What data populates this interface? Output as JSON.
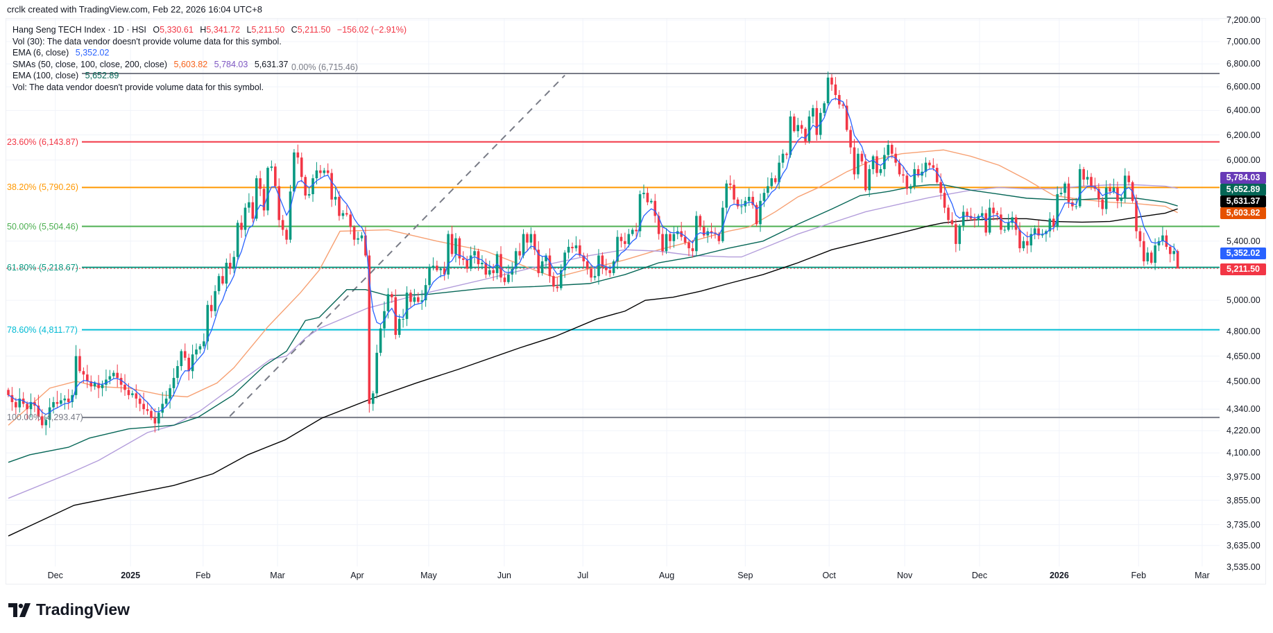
{
  "credit": "crclk created with TradingView.com, Feb 22, 2026 16:04 UTC+8",
  "legend": {
    "symbol": "Hang Seng TECH Index · 1D · HSI",
    "o_label": "O",
    "o": "5,330.61",
    "h_label": "H",
    "h": "5,341.72",
    "l_label": "L",
    "l": "5,211.50",
    "c_label": "C",
    "c": "5,211.50",
    "change": "−156.02 (−2.91%)",
    "vol30": "Vol (30): The data vendor doesn't provide volume data for this symbol.",
    "ema6_label": "EMA (6, close)",
    "ema6": "5,352.02",
    "smas_label": "SMAs (50, close, 100, close, 200, close)",
    "sma50": "5,603.82",
    "sma100": "5,784.03",
    "sma200": "5,631.37",
    "ema100_label": "EMA (100, close)",
    "ema100": "5,652.89",
    "vol": "Vol: The data vendor doesn't provide volume data for this symbol."
  },
  "price_tags": [
    {
      "label": "5,784.03",
      "value": 5784.03,
      "color": "#673ab7"
    },
    {
      "label": "5,652.89",
      "value": 5652.89,
      "color": "#056656"
    },
    {
      "label": "5,631.37",
      "value": 5631.37,
      "color": "#000000"
    },
    {
      "label": "5,603.82",
      "value": 5603.82,
      "color": "#e65100"
    },
    {
      "label": "5,352.02",
      "value": 5352.02,
      "color": "#2962ff"
    },
    {
      "label": "5,211.50",
      "value": 5211.5,
      "color": "#f23645"
    }
  ],
  "logo_text": "TradingView",
  "chart_data": {
    "type": "candlestick",
    "title": "Hang Seng TECH Index · 1D · HSI",
    "yscale": "log",
    "y_ticks": [
      "7,200.00",
      "7,000.00",
      "6,800.00",
      "6,600.00",
      "6,400.00",
      "6,200.00",
      "6,000.00",
      "5,400.00",
      "5,000.00",
      "4,800.00",
      "4,650.00",
      "4,500.00",
      "4,340.00",
      "4,220.00",
      "4,100.00",
      "3,975.00",
      "3,855.00",
      "3,735.00",
      "3,635.00",
      "3,535.00"
    ],
    "y_tick_values": [
      7200,
      7000,
      6800,
      6600,
      6400,
      6200,
      6000,
      5400,
      5000,
      4800,
      4650,
      4500,
      4340,
      4220,
      4100,
      3975,
      3855,
      3735,
      3635,
      3535
    ],
    "x_labels": [
      {
        "label": "Dec",
        "bar": 12.5
      },
      {
        "label": "2025",
        "bar": 32.5,
        "bold": true
      },
      {
        "label": "Feb",
        "bar": 51.8
      },
      {
        "label": "Mar",
        "bar": 71.6
      },
      {
        "label": "Apr",
        "bar": 92.8
      },
      {
        "label": "May",
        "bar": 111.8
      },
      {
        "label": "Jun",
        "bar": 131.9
      },
      {
        "label": "Jul",
        "bar": 152.8
      },
      {
        "label": "Aug",
        "bar": 175.1
      },
      {
        "label": "Sep",
        "bar": 196
      },
      {
        "label": "Oct",
        "bar": 218.3
      },
      {
        "label": "Nov",
        "bar": 238.4
      },
      {
        "label": "Dec",
        "bar": 258.3
      },
      {
        "label": "2026",
        "bar": 279.5,
        "bold": true
      },
      {
        "label": "Feb",
        "bar": 300.6
      },
      {
        "label": "Mar",
        "bar": 317.5
      }
    ],
    "closes": [
      4420,
      4380,
      4350,
      4400,
      4370,
      4340,
      4380,
      4360,
      4300,
      4250,
      4280,
      4350,
      4380,
      4370,
      4390,
      4400,
      4380,
      4420,
      4650,
      4560,
      4540,
      4500,
      4470,
      4490,
      4460,
      4480,
      4510,
      4530,
      4550,
      4520,
      4480,
      4450,
      4420,
      4430,
      4400,
      4370,
      4340,
      4330,
      4290,
      4260,
      4320,
      4370,
      4400,
      4460,
      4520,
      4590,
      4680,
      4640,
      4560,
      4660,
      4690,
      4710,
      4740,
      4970,
      4930,
      5060,
      5160,
      5110,
      5250,
      5210,
      5290,
      5530,
      5480,
      5640,
      5680,
      5560,
      5860,
      5780,
      5620,
      5940,
      5950,
      5800,
      5550,
      5480,
      5410,
      5760,
      6060,
      6020,
      5870,
      5730,
      5740,
      5860,
      5920,
      5900,
      5920,
      5900,
      5700,
      5720,
      5580,
      5600,
      5590,
      5500,
      5410,
      5420,
      5440,
      5300,
      4370,
      4430,
      4670,
      4820,
      4930,
      5040,
      5020,
      4780,
      4880,
      4880,
      5050,
      4990,
      5020,
      4990,
      5000,
      5100,
      5220,
      5230,
      5200,
      5210,
      5170,
      5450,
      5310,
      5420,
      5280,
      5270,
      5210,
      5300,
      5330,
      5240,
      5250,
      5170,
      5200,
      5180,
      5310,
      5150,
      5120,
      5170,
      5210,
      5330,
      5300,
      5450,
      5390,
      5450,
      5340,
      5180,
      5260,
      5300,
      5160,
      5090,
      5080,
      5200,
      5320,
      5360,
      5350,
      5370,
      5300,
      5260,
      5210,
      5150,
      5160,
      5300,
      5220,
      5200,
      5180,
      5260,
      5430,
      5400,
      5380,
      5450,
      5480,
      5470,
      5740,
      5750,
      5680,
      5690,
      5580,
      5450,
      5330,
      5450,
      5400,
      5450,
      5470,
      5430,
      5390,
      5350,
      5330,
      5580,
      5500,
      5440,
      5470,
      5460,
      5450,
      5400,
      5640,
      5820,
      5810,
      5700,
      5650,
      5650,
      5690,
      5720,
      5660,
      5520,
      5690,
      5750,
      5800,
      5860,
      5830,
      5980,
      6050,
      6040,
      6350,
      6230,
      6280,
      6250,
      6150,
      6350,
      6420,
      6200,
      6380,
      6460,
      6680,
      6620,
      6530,
      6450,
      6440,
      6240,
      6100,
      5890,
      6050,
      5990,
      5770,
      5930,
      6030,
      5900,
      5930,
      6040,
      6120,
      6050,
      5980,
      5890,
      5880,
      5780,
      5800,
      5930,
      5880,
      5910,
      5980,
      5960,
      5940,
      5830,
      5750,
      5640,
      5550,
      5520,
      5380,
      5510,
      5610,
      5580,
      5560,
      5550,
      5580,
      5600,
      5460,
      5640,
      5600,
      5590,
      5480,
      5480,
      5530,
      5570,
      5480,
      5350,
      5400,
      5370,
      5450,
      5490,
      5440,
      5450,
      5470,
      5560,
      5500,
      5740,
      5750,
      5820,
      5680,
      5650,
      5650,
      5930,
      5850,
      5870,
      5800,
      5780,
      5700,
      5630,
      5790,
      5760,
      5790,
      5690,
      5710,
      5880,
      5830,
      5690,
      5470,
      5400,
      5260,
      5320,
      5250,
      5370,
      5400,
      5440,
      5360,
      5310,
      5330.61
    ],
    "last_bar": {
      "open": 5330.61,
      "high": 5341.72,
      "low": 5211.5,
      "close": 5211.5
    },
    "series": [
      {
        "name": "SMA 50",
        "color": "#f7a072",
        "points": [
          [
            0,
            4250
          ],
          [
            11,
            4460
          ],
          [
            18,
            4500
          ],
          [
            23.6,
            4470
          ],
          [
            32,
            4460
          ],
          [
            41,
            4420
          ],
          [
            47.6,
            4410
          ],
          [
            55.5,
            4490
          ],
          [
            60,
            4580
          ],
          [
            69,
            4830
          ],
          [
            77.7,
            5050
          ],
          [
            82.7,
            5200
          ],
          [
            88.2,
            5470
          ],
          [
            101,
            5480
          ],
          [
            114,
            5400
          ],
          [
            127,
            5330
          ],
          [
            140,
            5200
          ],
          [
            145.4,
            5150
          ],
          [
            154.6,
            5210
          ],
          [
            164,
            5270
          ],
          [
            173,
            5340
          ],
          [
            182,
            5400
          ],
          [
            191.5,
            5470
          ],
          [
            197,
            5500
          ],
          [
            204,
            5610
          ],
          [
            210,
            5720
          ],
          [
            215.5,
            5790
          ],
          [
            223,
            5910
          ],
          [
            230,
            6000
          ],
          [
            237.6,
            6050
          ],
          [
            245,
            6070
          ],
          [
            248.7,
            6080
          ],
          [
            256,
            6030
          ],
          [
            263.5,
            5960
          ],
          [
            270.8,
            5850
          ],
          [
            278,
            5730
          ],
          [
            285.6,
            5700
          ],
          [
            293,
            5680
          ],
          [
            300,
            5670
          ],
          [
            307.7,
            5650
          ],
          [
            311,
            5603.82
          ]
        ]
      },
      {
        "name": "SMA 100",
        "color": "#b39ddb",
        "points": [
          [
            0,
            3865
          ],
          [
            16,
            3990
          ],
          [
            24,
            4060
          ],
          [
            37,
            4210
          ],
          [
            44,
            4250
          ],
          [
            51,
            4330
          ],
          [
            60.5,
            4480
          ],
          [
            69.7,
            4630
          ],
          [
            74,
            4650
          ],
          [
            79,
            4760
          ],
          [
            82.7,
            4820
          ],
          [
            95.6,
            4950
          ],
          [
            108,
            5030
          ],
          [
            127,
            5140
          ],
          [
            140,
            5220
          ],
          [
            154.6,
            5300
          ],
          [
            164,
            5340
          ],
          [
            173,
            5330
          ],
          [
            182,
            5300
          ],
          [
            191.5,
            5290
          ],
          [
            195,
            5290
          ],
          [
            200.7,
            5350
          ],
          [
            210,
            5450
          ],
          [
            219,
            5530
          ],
          [
            228,
            5610
          ],
          [
            237.6,
            5670
          ],
          [
            245,
            5715
          ],
          [
            256,
            5770
          ],
          [
            263.5,
            5790
          ],
          [
            270.8,
            5780
          ],
          [
            278,
            5780
          ],
          [
            285.6,
            5800
          ],
          [
            293,
            5810
          ],
          [
            300,
            5810
          ],
          [
            307.7,
            5800
          ],
          [
            311,
            5784.03
          ]
        ]
      },
      {
        "name": "SMA 200",
        "color": "#000000",
        "points": [
          [
            0,
            3680
          ],
          [
            17.5,
            3830
          ],
          [
            33.4,
            3890
          ],
          [
            44,
            3930
          ],
          [
            54.4,
            3990
          ],
          [
            63.7,
            4090
          ],
          [
            73.6,
            4170
          ],
          [
            83.4,
            4290
          ],
          [
            96.7,
            4400
          ],
          [
            108.5,
            4490
          ],
          [
            119.6,
            4570
          ],
          [
            136,
            4700
          ],
          [
            145.4,
            4770
          ],
          [
            156.5,
            4880
          ],
          [
            164,
            4930
          ],
          [
            169.4,
            5000
          ],
          [
            176.8,
            5020
          ],
          [
            184.2,
            5060
          ],
          [
            191.5,
            5110
          ],
          [
            200.7,
            5170
          ],
          [
            210,
            5250
          ],
          [
            219,
            5340
          ],
          [
            228.4,
            5400
          ],
          [
            237.6,
            5460
          ],
          [
            245,
            5510
          ],
          [
            248.7,
            5530
          ],
          [
            256,
            5550
          ],
          [
            263.5,
            5560
          ],
          [
            270.8,
            5560
          ],
          [
            278,
            5540
          ],
          [
            285.6,
            5535
          ],
          [
            293,
            5540
          ],
          [
            300,
            5570
          ],
          [
            307.7,
            5600
          ],
          [
            311,
            5631.37
          ]
        ]
      },
      {
        "name": "EMA 100",
        "color": "#056656",
        "points": [
          [
            0,
            4050
          ],
          [
            5.7,
            4090
          ],
          [
            16,
            4130
          ],
          [
            21.6,
            4180
          ],
          [
            32,
            4230
          ],
          [
            44,
            4250
          ],
          [
            50.5,
            4295
          ],
          [
            59.8,
            4420
          ],
          [
            68,
            4590
          ],
          [
            74,
            4680
          ],
          [
            79,
            4870
          ],
          [
            82.7,
            4890
          ],
          [
            90,
            5070
          ],
          [
            95,
            5070
          ],
          [
            101,
            5030
          ],
          [
            112,
            5040
          ],
          [
            127,
            5080
          ],
          [
            140,
            5090
          ],
          [
            154.6,
            5110
          ],
          [
            164,
            5170
          ],
          [
            173,
            5250
          ],
          [
            182,
            5290
          ],
          [
            191.5,
            5350
          ],
          [
            200.7,
            5400
          ],
          [
            210,
            5520
          ],
          [
            219,
            5630
          ],
          [
            226.6,
            5730
          ],
          [
            234,
            5760
          ],
          [
            241,
            5800
          ],
          [
            245,
            5810
          ],
          [
            248.7,
            5810
          ],
          [
            256,
            5770
          ],
          [
            263.5,
            5740
          ],
          [
            270.8,
            5710
          ],
          [
            278,
            5700
          ],
          [
            285.6,
            5700
          ],
          [
            293,
            5710
          ],
          [
            300,
            5710
          ],
          [
            307.7,
            5680
          ],
          [
            311,
            5652.89
          ]
        ]
      }
    ],
    "ema_fast": {
      "name": "EMA 6",
      "period": 6,
      "color": "#2962ff"
    },
    "fib_levels": [
      {
        "label": "0.00% (6,715.46)",
        "price": 6715.46,
        "color": "#787b86"
      },
      {
        "label": "23.60% (6,143.87)",
        "price": 6143.87,
        "color": "#f23645"
      },
      {
        "label": "38.20% (5,790.26)",
        "price": 5790.26,
        "color": "#ff9800"
      },
      {
        "label": "50.00% (5,504.46)",
        "price": 5504.46,
        "color": "#4caf50"
      },
      {
        "label": "61.80% (5,218.67)",
        "price": 5218.67,
        "color": "#089981"
      },
      {
        "label": "78.60% (4,811.77)",
        "price": 4811.77,
        "color": "#00bcd4"
      },
      {
        "label": "100.00% (4,293.47)",
        "price": 4293.47,
        "color": "#787b86"
      }
    ],
    "trend_line": {
      "from": [
        58.9,
        4300
      ],
      "to": [
        148,
        6700
      ],
      "color": "#787b86"
    },
    "up_color": "#089981",
    "down_color": "#f23645"
  }
}
